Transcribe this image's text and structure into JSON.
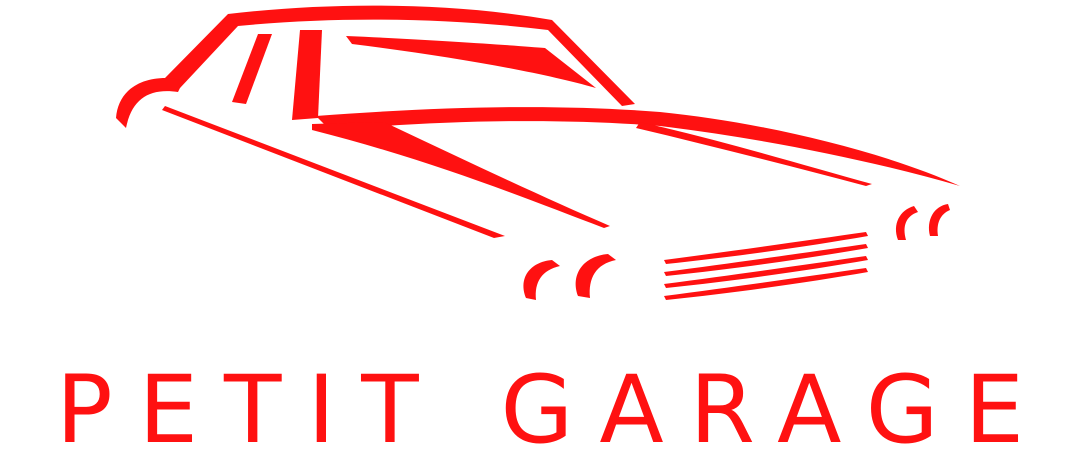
{
  "logo": {
    "brand_name": "PETIT GARAGE",
    "icon": "car-silhouette-icon",
    "brand_color": "#ff1111",
    "background": "#ffffff"
  }
}
